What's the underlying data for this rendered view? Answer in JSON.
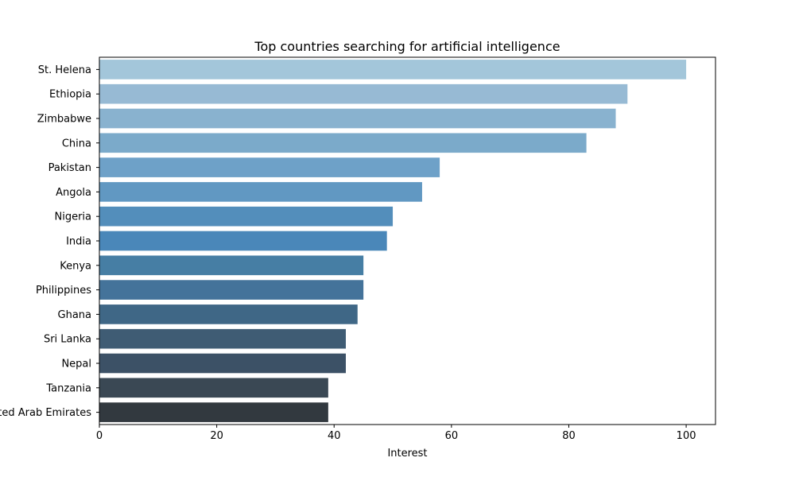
{
  "chart_data": {
    "type": "bar",
    "orientation": "horizontal",
    "title": "Top countries searching for artificial intelligence",
    "xlabel": "Interest",
    "ylabel": "",
    "xlim": [
      0,
      105
    ],
    "xticks": [
      0,
      20,
      40,
      60,
      80,
      100
    ],
    "grid": false,
    "categories": [
      "St. Helena",
      "Ethiopia",
      "Zimbabwe",
      "China",
      "Pakistan",
      "Angola",
      "Nigeria",
      "India",
      "Kenya",
      "Philippines",
      "Ghana",
      "Sri Lanka",
      "Nepal",
      "Tanzania",
      "United Arab Emirates"
    ],
    "values": [
      100,
      90,
      88,
      83,
      58,
      55,
      50,
      49,
      45,
      45,
      44,
      42,
      42,
      39,
      39
    ],
    "colors": [
      "#a3c6da",
      "#97bad4",
      "#89b2cf",
      "#7baaca",
      "#6ea1c8",
      "#6198c2",
      "#538ebb",
      "#4a87b9",
      "#467ea4",
      "#44739a",
      "#3f6786",
      "#3f5c74",
      "#3c5166",
      "#3a4854",
      "#32393f"
    ]
  }
}
